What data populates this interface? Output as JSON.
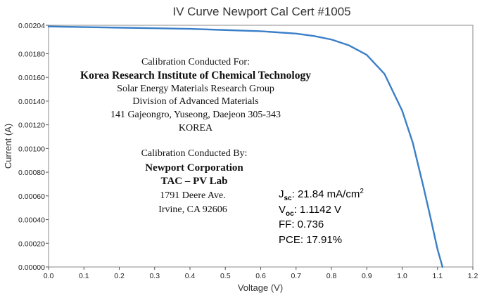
{
  "chart_data": {
    "type": "line",
    "title": "IV Curve Newport Cal Cert #1005",
    "xlabel": "Voltage (V)",
    "ylabel": "Current (A)",
    "xlim": [
      0,
      1.2
    ],
    "ylim": [
      0,
      0.00204
    ],
    "x_ticks": [
      "0.0",
      "0.1",
      "0.2",
      "0.3",
      "0.4",
      "0.5",
      "0.6",
      "0.7",
      "0.8",
      "0.9",
      "1.0",
      "1.1",
      "1.2"
    ],
    "y_ticks": [
      "0.00000",
      "0.00020",
      "0.00040",
      "0.00060",
      "0.00080",
      "0.00100",
      "0.00120",
      "0.00140",
      "0.00160",
      "0.00180",
      "0.00204"
    ],
    "y_tick_values": [
      0,
      0.0002,
      0.0004,
      0.0006,
      0.0008,
      0.001,
      0.0012,
      0.0014,
      0.0016,
      0.0018,
      0.00204
    ],
    "grid": false,
    "series_color": "#3a7fc8",
    "series": [
      {
        "x": [
          0.0,
          0.1,
          0.2,
          0.3,
          0.4,
          0.5,
          0.6,
          0.7,
          0.75,
          0.8,
          0.85,
          0.9,
          0.95,
          1.0,
          1.03,
          1.06,
          1.08,
          1.1,
          1.1142
        ],
        "y": [
          0.00203,
          0.002025,
          0.00202,
          0.002015,
          0.00201,
          0.002,
          0.00199,
          0.00197,
          0.00195,
          0.00192,
          0.00187,
          0.00179,
          0.00163,
          0.00132,
          0.00105,
          0.00068,
          0.00042,
          0.00015,
          0.0
        ]
      }
    ]
  },
  "annotations": {
    "for_heading": "Calibration Conducted For:",
    "for_org": "Korea Research Institute of Chemical Technology",
    "for_line1": "Solar Energy Materials Research Group",
    "for_line2": "Division of Advanced Materials",
    "for_line3": "141 Gajeongro, Yuseong, Daejeon 305-343",
    "for_line4": "KOREA",
    "by_heading": "Calibration Conducted By:",
    "by_org": "Newport Corporation",
    "by_lab": "TAC – PV Lab",
    "by_line1": "1791 Deere Ave.",
    "by_line2": "Irvine, CA 92606"
  },
  "stats": {
    "jsc_symbol": "J",
    "jsc_sub": "sc",
    "jsc_value": ": 21.84 mA/cm",
    "jsc_sup": "2",
    "voc_symbol": "V",
    "voc_sub": "oc",
    "voc_value": ": 1.1142 V",
    "ff": "FF: 0.736",
    "pce": "PCE: 17.91%"
  }
}
